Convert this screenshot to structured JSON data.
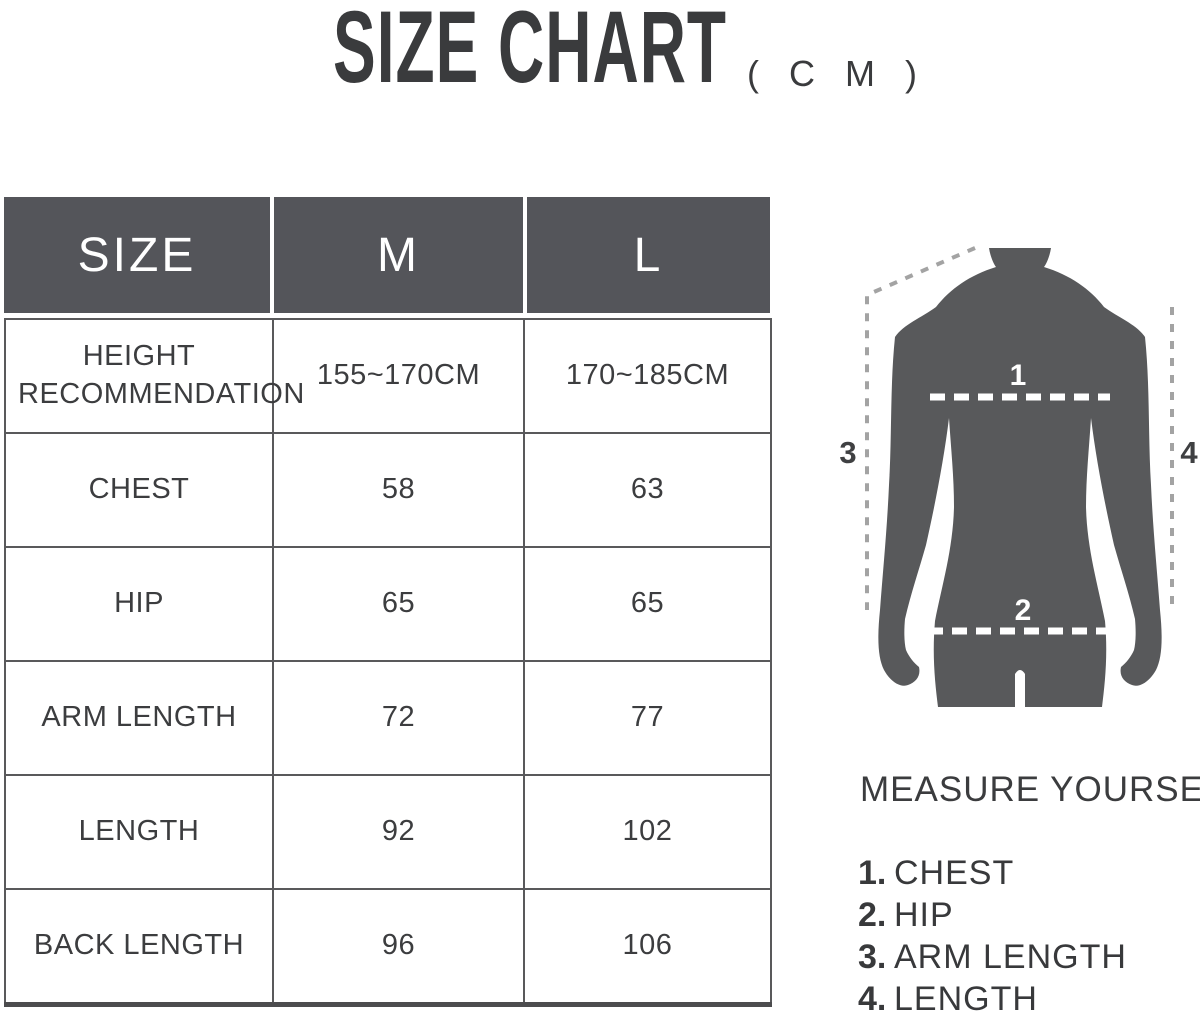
{
  "title": {
    "main": "SIZE CHART",
    "unit": "( C M )"
  },
  "table": {
    "headers": [
      "SIZE",
      "M",
      "L"
    ],
    "rows": [
      {
        "label": "HEIGHT RECOMMENDATION",
        "m": "155~170CM",
        "l": "170~185CM"
      },
      {
        "label": "CHEST",
        "m": "58",
        "l": "63"
      },
      {
        "label": "HIP",
        "m": "65",
        "l": "65"
      },
      {
        "label": "ARM LENGTH",
        "m": "72",
        "l": "77"
      },
      {
        "label": "LENGTH",
        "m": "92",
        "l": "102"
      },
      {
        "label": "BACK LENGTH",
        "m": "96",
        "l": "106"
      }
    ]
  },
  "figure": {
    "markers": [
      "1",
      "2",
      "3",
      "4"
    ]
  },
  "measure": {
    "heading": "MEASURE YOURSELF",
    "items": [
      {
        "num": "1.",
        "label": "CHEST"
      },
      {
        "num": "2.",
        "label": "HIP"
      },
      {
        "num": "3.",
        "label": "ARM LENGTH"
      },
      {
        "num": "4.",
        "label": "LENGTH"
      }
    ]
  },
  "colors": {
    "header_bg": "#54555A",
    "body_silhouette": "#58595B",
    "grid_border": "#59595B",
    "text_dark": "#3C3D3F",
    "dash_gray": "#A3A3A3",
    "dash_white": "#FFFFFF"
  },
  "chart_data": {
    "type": "table",
    "title": "SIZE CHART (CM)",
    "columns": [
      "SIZE",
      "M",
      "L"
    ],
    "rows": [
      [
        "HEIGHT RECOMMENDATION",
        "155~170CM",
        "170~185CM"
      ],
      [
        "CHEST",
        58,
        63
      ],
      [
        "HIP",
        65,
        65
      ],
      [
        "ARM LENGTH",
        72,
        77
      ],
      [
        "LENGTH",
        92,
        102
      ],
      [
        "BACK LENGTH",
        96,
        106
      ]
    ],
    "annotations": [
      "MEASURE YOURSELF",
      "1. CHEST",
      "2. HIP",
      "3. ARM LENGTH",
      "4. LENGTH"
    ]
  }
}
